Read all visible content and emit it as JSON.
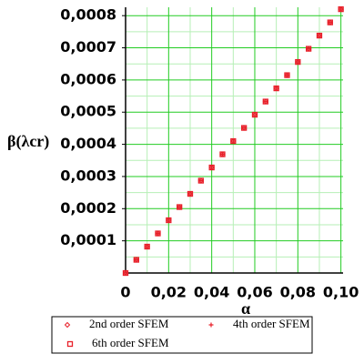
{
  "chart_data": {
    "type": "scatter",
    "x_label": "α",
    "y_label": "β(λcr)",
    "x": [
      0,
      0.005,
      0.01,
      0.015,
      0.02,
      0.025,
      0.03,
      0.035,
      0.04,
      0.045,
      0.05,
      0.055,
      0.06,
      0.065,
      0.07,
      0.075,
      0.08,
      0.085,
      0.09,
      0.095,
      0.1
    ],
    "series": [
      {
        "name": "2nd order SFEM",
        "color": "#e8202a",
        "marker": "diamond",
        "values": [
          0,
          4.1e-05,
          8.2e-05,
          0.000123,
          0.000164,
          0.000205,
          0.000246,
          0.000287,
          0.000328,
          0.000369,
          0.00041,
          0.000451,
          0.000492,
          0.000533,
          0.000574,
          0.000615,
          0.000656,
          0.000697,
          0.000738,
          0.000779,
          0.00082
        ]
      },
      {
        "name": "4th order SFEM",
        "color": "#e8202a",
        "marker": "plus",
        "values": [
          0,
          4.1e-05,
          8.2e-05,
          0.000123,
          0.000164,
          0.000205,
          0.000246,
          0.000287,
          0.000328,
          0.000369,
          0.00041,
          0.000451,
          0.000492,
          0.000533,
          0.000574,
          0.000615,
          0.000656,
          0.000697,
          0.000738,
          0.000779,
          0.00082
        ]
      },
      {
        "name": "6th order SFEM",
        "color": "#e8202a",
        "marker": "square",
        "values": [
          0,
          4.1e-05,
          8.2e-05,
          0.000123,
          0.000164,
          0.000205,
          0.000246,
          0.000287,
          0.000328,
          0.000369,
          0.00041,
          0.000451,
          0.000492,
          0.000533,
          0.000574,
          0.000615,
          0.000656,
          0.000697,
          0.000738,
          0.000779,
          0.00082
        ]
      }
    ],
    "xlim": [
      0,
      0.101
    ],
    "ylim": [
      0,
      0.000826
    ],
    "xticks": [
      0,
      {
        "value": 0.02,
        "label": "0,02"
      },
      {
        "value": 0.04,
        "label": "0,04"
      },
      {
        "value": 0.06,
        "label": "0,06"
      },
      {
        "value": 0.08,
        "label": "0,08"
      },
      {
        "value": 0.1,
        "label": "0,10"
      }
    ],
    "yticks": [
      {
        "value": 0.0001,
        "label": "0,0001"
      },
      {
        "value": 0.0002,
        "label": "0,0002"
      },
      {
        "value": 0.0003,
        "label": "0,0003"
      },
      {
        "value": 0.0004,
        "label": "0,0004"
      },
      {
        "value": 0.0005,
        "label": "0,0005"
      },
      {
        "value": 0.0006,
        "label": "0,0006"
      },
      {
        "value": 0.0007,
        "label": "0,0007"
      },
      {
        "value": 0.0008,
        "label": "0,0008"
      }
    ],
    "grid": true,
    "grid_color": "#22cc22",
    "minor_grid_color": "#b6efb6",
    "legend": "bottom"
  }
}
